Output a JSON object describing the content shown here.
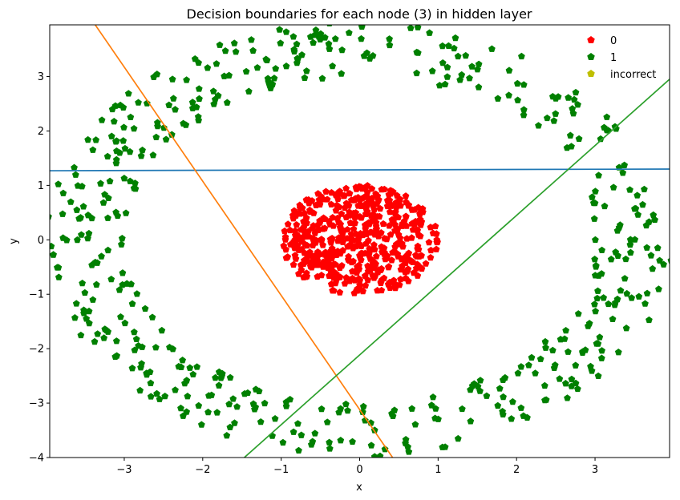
{
  "chart_data": {
    "type": "scatter",
    "title": "Decision boundaries for each node (3) in hidden layer",
    "xlabel": "x",
    "ylabel": "y",
    "xlim": [
      -3.95,
      3.95
    ],
    "ylim": [
      -4.0,
      3.95
    ],
    "xticks": [
      -3,
      -2,
      -1,
      0,
      1,
      2,
      3
    ],
    "yticks": [
      -4,
      -3,
      -2,
      -1,
      0,
      1,
      2,
      3
    ],
    "grid": false,
    "legend_position": "top-right",
    "legend": [
      {
        "label": "0",
        "color": "#ff0000",
        "marker": "pentagon"
      },
      {
        "label": "1",
        "color": "#008000",
        "marker": "pentagon"
      },
      {
        "label": "incorrect",
        "color": "#bfbf00",
        "marker": "pentagon"
      }
    ],
    "series": [
      {
        "name": "0",
        "color": "#ff0000",
        "distribution": "disk",
        "center": [
          0.0,
          0.0
        ],
        "r_min": 0.0,
        "r_max": 1.0,
        "count": 500
      },
      {
        "name": "1",
        "color": "#008000",
        "distribution": "ring",
        "center": [
          0.0,
          0.0
        ],
        "r_min": 3.0,
        "r_max": 4.0,
        "count": 500
      },
      {
        "name": "incorrect",
        "color": "#bfbf00",
        "count": 0
      }
    ],
    "boundary_lines": [
      {
        "color": "#1f77b4",
        "x": [
          -3.95,
          3.95
        ],
        "y": [
          1.27,
          1.3
        ]
      },
      {
        "color": "#ff7f0e",
        "x": [
          -3.37,
          0.42
        ],
        "y": [
          3.95,
          -4.0
        ]
      },
      {
        "color": "#2ca02c",
        "x": [
          -1.47,
          3.95
        ],
        "y": [
          -4.0,
          2.95
        ]
      }
    ]
  }
}
